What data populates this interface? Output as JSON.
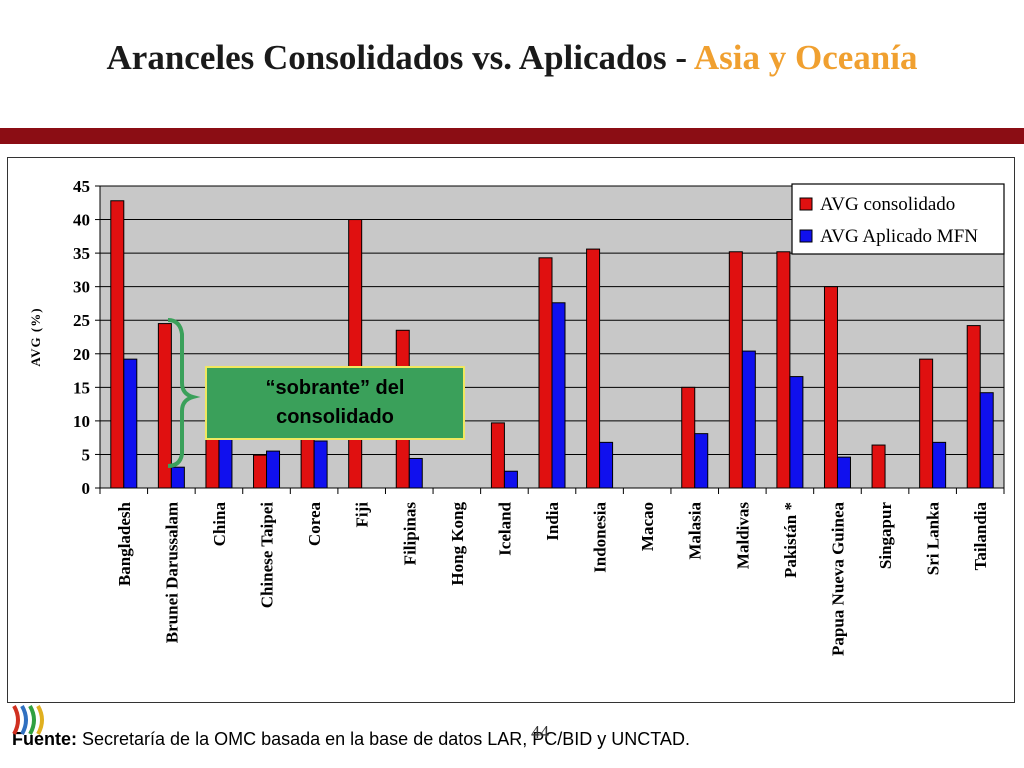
{
  "slide": {
    "title_main": "Aranceles Consolidados vs. Aplicados - ",
    "title_accent": "Asia y Oceanía",
    "footer_label": "Fuente:",
    "footer_text": " Secretaría de la OMC basada en la base de datos LAR, PC/BID y UNCTAD.",
    "page_number": "44"
  },
  "colors": {
    "accent": "#f0a030",
    "rule": "#8b0d14",
    "consolidado": "#e01010",
    "aplicado": "#1010ee",
    "plot_bg": "#c8c8c8",
    "callout_bg": "#3aa05a",
    "callout_border": "#f0e860",
    "brace": "#3aa05a"
  },
  "chart_data": {
    "type": "bar",
    "title": "",
    "xlabel": "",
    "ylabel": "AVG (%)",
    "ylim": [
      0,
      45
    ],
    "yticks": [
      0,
      5,
      10,
      15,
      20,
      25,
      30,
      35,
      40,
      45
    ],
    "grid": true,
    "legend_position": "top-right",
    "categories": [
      "Bangladesh",
      "Brunei Darussalam",
      "China",
      "Chinese Taipei",
      "Corea",
      "Fiji",
      "Filipinas",
      "Hong Kong",
      "Iceland",
      "India",
      "Indonesia",
      "Macao",
      "Malasia",
      "Maldivas",
      "Pakistán *",
      "Papua Nueva Guinea",
      "Singapur",
      "Sri Lanka",
      "Tailandia"
    ],
    "series": [
      {
        "name": "AVG consolidado",
        "values": [
          42.8,
          24.5,
          9.2,
          4.9,
          8.0,
          40.0,
          23.5,
          0,
          9.7,
          34.3,
          35.6,
          0,
          15.0,
          35.2,
          35.2,
          30.0,
          6.4,
          19.2,
          24.2
        ]
      },
      {
        "name": "AVG Aplicado MFN",
        "values": [
          19.2,
          3.1,
          9.0,
          5.5,
          7.0,
          0,
          4.4,
          0,
          2.5,
          27.6,
          6.8,
          0,
          8.1,
          20.4,
          16.6,
          4.6,
          0,
          6.8,
          14.2
        ]
      }
    ],
    "annotation": {
      "text": "“sobrante” del consolidado"
    }
  }
}
